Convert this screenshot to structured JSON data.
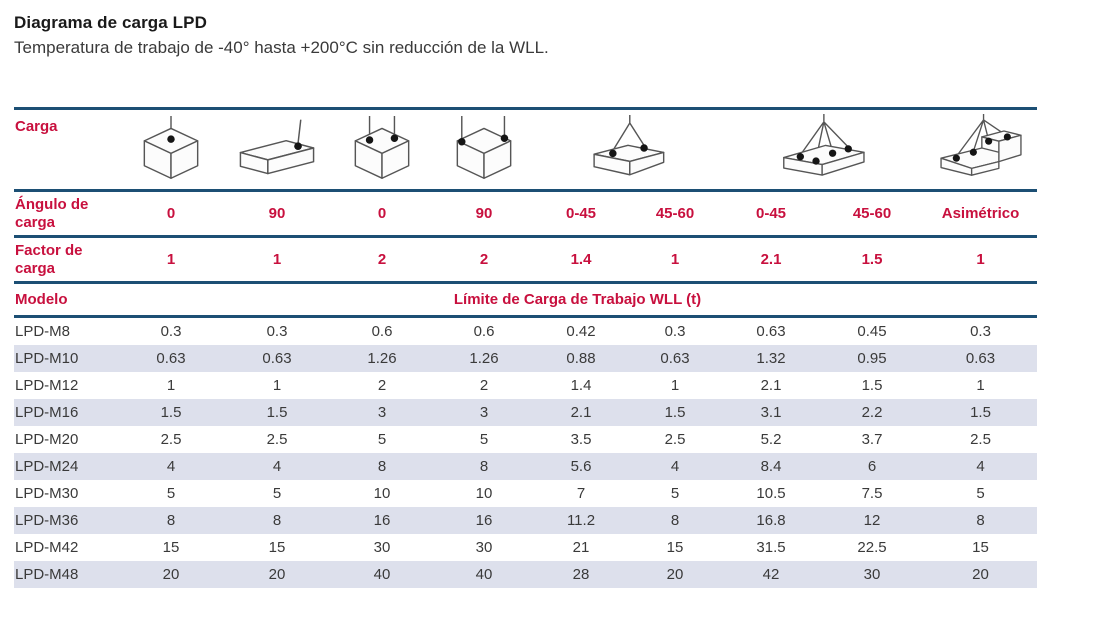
{
  "page": {
    "title": "Diagrama de carga LPD",
    "subtitle": "Temperatura de trabajo de -40° hasta +200°C sin reducción de la WLL."
  },
  "colors": {
    "accent_red": "#c8103e",
    "border_navy": "#1c4f74",
    "row_alt_bg": "#dde0ec",
    "body_text": "#3a3a3a"
  },
  "table": {
    "row_labels": {
      "carga": "Carga",
      "angulo": "Ángulo de carga",
      "factor": "Factor de carga",
      "modelo": "Modelo"
    },
    "wll_header": "Límite de Carga de Trabajo WLL (t)",
    "icons": [
      "load-0deg-single-point",
      "load-90deg-single-point",
      "load-0deg-two-points",
      "load-90deg-two-points",
      "two-leg-sling-box",
      "four-leg-sling-box",
      "four-leg-sling-asymmetric"
    ],
    "angles": [
      "0",
      "90",
      "0",
      "90",
      "0-45",
      "45-60",
      "0-45",
      "45-60",
      "Asimétrico"
    ],
    "factors": [
      "1",
      "1",
      "2",
      "2",
      "1.4",
      "1",
      "2.1",
      "1.5",
      "1"
    ],
    "rows": [
      {
        "model": "LPD-M8",
        "values": [
          "0.3",
          "0.3",
          "0.6",
          "0.6",
          "0.42",
          "0.3",
          "0.63",
          "0.45",
          "0.3"
        ]
      },
      {
        "model": "LPD-M10",
        "values": [
          "0.63",
          "0.63",
          "1.26",
          "1.26",
          "0.88",
          "0.63",
          "1.32",
          "0.95",
          "0.63"
        ]
      },
      {
        "model": "LPD-M12",
        "values": [
          "1",
          "1",
          "2",
          "2",
          "1.4",
          "1",
          "2.1",
          "1.5",
          "1"
        ]
      },
      {
        "model": "LPD-M16",
        "values": [
          "1.5",
          "1.5",
          "3",
          "3",
          "2.1",
          "1.5",
          "3.1",
          "2.2",
          "1.5"
        ]
      },
      {
        "model": "LPD-M20",
        "values": [
          "2.5",
          "2.5",
          "5",
          "5",
          "3.5",
          "2.5",
          "5.2",
          "3.7",
          "2.5"
        ]
      },
      {
        "model": "LPD-M24",
        "values": [
          "4",
          "4",
          "8",
          "8",
          "5.6",
          "4",
          "8.4",
          "6",
          "4"
        ]
      },
      {
        "model": "LPD-M30",
        "values": [
          "5",
          "5",
          "10",
          "10",
          "7",
          "5",
          "10.5",
          "7.5",
          "5"
        ]
      },
      {
        "model": "LPD-M36",
        "values": [
          "8",
          "8",
          "16",
          "16",
          "11.2",
          "8",
          "16.8",
          "12",
          "8"
        ]
      },
      {
        "model": "LPD-M42",
        "values": [
          "15",
          "15",
          "30",
          "30",
          "21",
          "15",
          "31.5",
          "22.5",
          "15"
        ]
      },
      {
        "model": "LPD-M48",
        "values": [
          "20",
          "20",
          "40",
          "40",
          "28",
          "20",
          "42",
          "30",
          "20"
        ]
      }
    ]
  }
}
